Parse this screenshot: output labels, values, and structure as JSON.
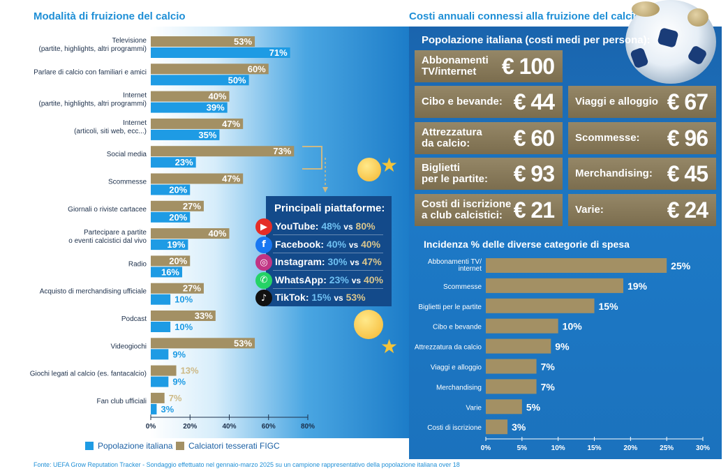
{
  "left_title": "Modalità di fruizione del calcio",
  "right_title": "Costi annuali connessi alla fruizione del calcio",
  "colors": {
    "blue": "#1e9be4",
    "gold": "#a39064",
    "gold_text": "#c9b27a",
    "gold_light": "#cdb985",
    "navy": "#134a8a",
    "title_blue": "#1f8fd6"
  },
  "chart_data": [
    {
      "type": "bar",
      "orientation": "horizontal",
      "categories": [
        "Televisione\n(partite, highlights, altri programmi)",
        "Parlare di calcio con familiari e amici",
        "Internet\n(partite, highlights, altri programmi)",
        "Internet\n(articoli, siti web, ecc...)",
        "Social media",
        "Scommesse",
        "Giornali o riviste cartacee",
        "Partecipare a partite\no eventi calcistici dal vivo",
        "Radio",
        "Acquisto di merchandising ufficiale",
        "Podcast",
        "Videogiochi",
        "Giochi legati al calcio (es. fantacalcio)",
        "Fan club ufficiali"
      ],
      "series": [
        {
          "name": "Calciatori tesserati FIGC",
          "values": [
            53,
            60,
            40,
            47,
            73,
            47,
            27,
            40,
            20,
            27,
            33,
            53,
            13,
            7
          ],
          "labels": [
            "53%",
            "60%",
            "40%",
            "47%",
            "73%",
            "47%",
            "27%",
            "40%",
            "20%",
            "27%",
            "33%",
            "53%",
            "13%",
            "7%"
          ]
        },
        {
          "name": "Popolazione italiana",
          "values": [
            71,
            50,
            39,
            35,
            23,
            20,
            20,
            19,
            16,
            10,
            10,
            9,
            9,
            3
          ],
          "labels": [
            "71%",
            "50%",
            "39%",
            "35%",
            "23%",
            "20%",
            "20%",
            "19%",
            "16%",
            "10%",
            "10%",
            "9%",
            "9%",
            "3%"
          ]
        }
      ],
      "xlim": [
        0,
        80
      ],
      "xticks": [
        "0%",
        "20%",
        "40%",
        "60%",
        "80%"
      ],
      "legend": [
        {
          "name": "Popolazione italiana",
          "color": "#1e9be4"
        },
        {
          "name": "Calciatori tesserati FIGC",
          "color": "#a39064"
        }
      ],
      "legend_position": "bottom-left"
    },
    {
      "type": "bar",
      "orientation": "horizontal",
      "title": "Incidenza % delle diverse categorie di spesa",
      "categories": [
        "Abbonamenti TV/\ninternet",
        "Scommesse",
        "Biglietti per le partite",
        "Cibo e bevande",
        "Attrezzatura da calcio",
        "Viaggi e alloggio",
        "Merchandising",
        "Varie",
        "Costi di iscrizione"
      ],
      "values": [
        25,
        19,
        15,
        10,
        9,
        7,
        7,
        5,
        3
      ],
      "labels": [
        "25%",
        "19%",
        "15%",
        "10%",
        "9%",
        "7%",
        "7%",
        "5%",
        "3%"
      ],
      "xlim": [
        0,
        30
      ],
      "xticks": [
        "0%",
        "5%",
        "10%",
        "15%",
        "20%",
        "25%",
        "30%"
      ]
    }
  ],
  "costs": {
    "title": "Popolazione italiana (costi medi per persona):",
    "items": [
      {
        "label": "Abbonamenti\nTV/internet",
        "value": "€ 100"
      },
      {
        "label": "Cibo e bevande:",
        "value": "€ 44"
      },
      {
        "label": "Viaggi e alloggio",
        "value": "€ 67"
      },
      {
        "label": "Attrezzatura\nda calcio:",
        "value": "€ 60"
      },
      {
        "label": "Scommesse:",
        "value": "€ 96"
      },
      {
        "label": "Biglietti\nper le partite:",
        "value": "€ 93"
      },
      {
        "label": "Merchandising:",
        "value": "€ 45"
      },
      {
        "label": "Costi di iscrizione\na club calcistici:",
        "value": "€ 21"
      },
      {
        "label": "Varie:",
        "value": "€ 24"
      }
    ]
  },
  "platforms": {
    "title": "Principali piattaforme:",
    "vs": "vs",
    "items": [
      {
        "name": "YouTube:",
        "icon": "youtube-icon",
        "pop": "48%",
        "figc": "80%",
        "color": "#e52d27"
      },
      {
        "name": "Facebook:",
        "icon": "facebook-icon",
        "pop": "40%",
        "figc": "40%",
        "color": "#1877f2"
      },
      {
        "name": "Instagram:",
        "icon": "instagram-icon",
        "pop": "30%",
        "figc": "47%",
        "color": "#c13584"
      },
      {
        "name": "WhatsApp:",
        "icon": "whatsapp-icon",
        "pop": "23%",
        "figc": "40%",
        "color": "#25d366"
      },
      {
        "name": "TikTok:",
        "icon": "tiktok-icon",
        "pop": "15%",
        "figc": "53%",
        "color": "#111111"
      }
    ]
  },
  "source": "Fonte: UEFA Grow Reputation Tracker - Sondaggio effettuato nel gennaio-marzo 2025 su un campione rappresentativo della popolazione italiana over 18"
}
